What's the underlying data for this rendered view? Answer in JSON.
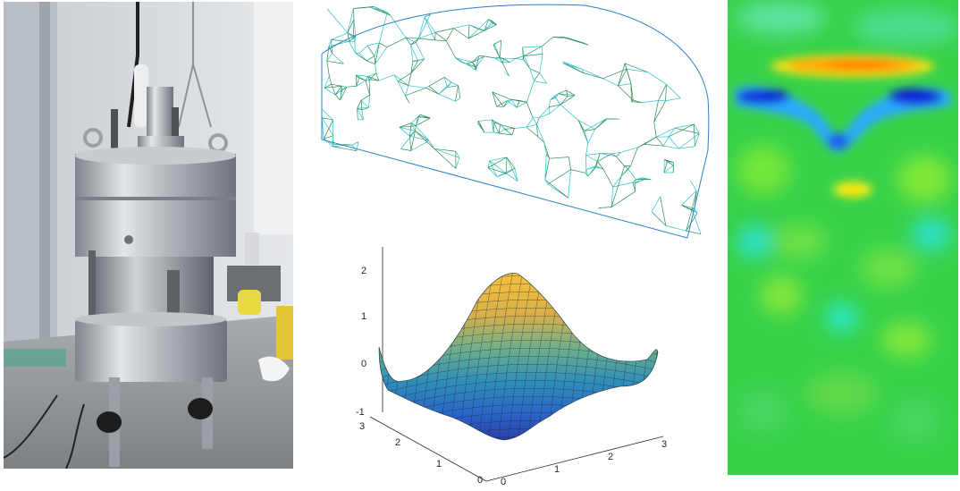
{
  "panels": {
    "photo": {
      "subject": "stainless steel cylindrical pressure cell apparatus on lab bench"
    },
    "mesh": {
      "subject": "3D truss finite element mesh of half-dome"
    },
    "surface": {
      "z_ticks": [
        "2",
        "1",
        "0",
        "-1"
      ],
      "y_ticks": [
        "3",
        "2",
        "1",
        "0"
      ],
      "x_ticks": [
        "0",
        "1",
        "2",
        "3"
      ]
    },
    "heatmap": {
      "subject": "color field map",
      "colormap": "jet"
    }
  },
  "colors": {
    "steel_light": "#d9dcdf",
    "steel_dark": "#8a9096",
    "mesh_green": "#2e8a55",
    "mesh_cyan": "#28c3c8",
    "heat_base": "#38d24a",
    "heat_hot": "#ff8c00",
    "heat_cold": "#1520d8"
  }
}
